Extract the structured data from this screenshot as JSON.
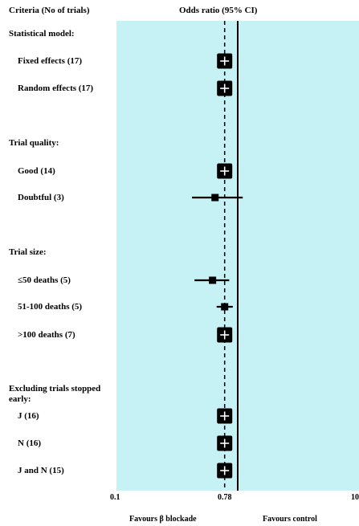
{
  "chart_data": {
    "type": "forest",
    "header_left": "Criteria (No of trials)",
    "header_right": "Odds ratio (95% CI)",
    "x_scale": "log",
    "xlim": [
      0.1,
      10
    ],
    "x_ticks": [
      "0.1",
      "0.78",
      "10"
    ],
    "reference_line": 1,
    "pooled_line": 0.78,
    "favours_left": "Favours β blockade",
    "favours_right": "Favours control",
    "groups": [
      {
        "label": "Statistical model:",
        "rows": [
          {
            "label": "Fixed effects (17)",
            "or": 0.78,
            "ci": [
              0.71,
              0.86
            ],
            "large": true
          },
          {
            "label": "Random effects (17)",
            "or": 0.78,
            "ci": [
              0.71,
              0.86
            ],
            "large": true
          }
        ]
      },
      {
        "label": "Trial quality:",
        "rows": [
          {
            "label": "Good (14)",
            "or": 0.78,
            "ci": [
              0.71,
              0.86
            ],
            "large": true
          },
          {
            "label": "Doubtful (3)",
            "or": 0.65,
            "ci": [
              0.42,
              1.1
            ],
            "large": false
          }
        ]
      },
      {
        "label": "Trial size:",
        "rows": [
          {
            "label": "≤50 deaths (5)",
            "or": 0.62,
            "ci": [
              0.44,
              0.85
            ],
            "large": false
          },
          {
            "label": "51-100 deaths (5)",
            "or": 0.78,
            "ci": [
              0.67,
              0.91
            ],
            "large": false
          },
          {
            "label": ">100 deaths (7)",
            "or": 0.78,
            "ci": [
              0.71,
              0.86
            ],
            "large": true
          }
        ]
      },
      {
        "label": "Excluding trials stopped early:",
        "rows": [
          {
            "label": "J (16)",
            "or": 0.78,
            "ci": [
              0.71,
              0.86
            ],
            "large": true
          },
          {
            "label": "N (16)",
            "or": 0.78,
            "ci": [
              0.71,
              0.86
            ],
            "large": true
          },
          {
            "label": "J and N (15)",
            "or": 0.78,
            "ci": [
              0.71,
              0.86
            ],
            "large": true
          }
        ]
      }
    ]
  }
}
